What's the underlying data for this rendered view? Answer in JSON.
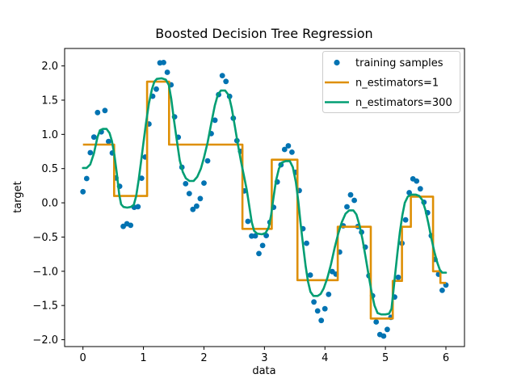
{
  "title": "Boosted Decision Tree Regression",
  "axes": {
    "xlabel": "data",
    "ylabel": "target",
    "xlim": [
      -0.303,
      6.307
    ],
    "ylim": [
      -2.1,
      2.255
    ],
    "xtick_values": [
      0,
      1,
      2,
      3,
      4,
      5,
      6
    ],
    "xtick_labels": [
      "0",
      "1",
      "2",
      "3",
      "4",
      "5",
      "6"
    ],
    "ytick_values": [
      2.0,
      1.5,
      1.0,
      0.5,
      0.0,
      -0.5,
      -1.0,
      -1.5,
      -2.0
    ],
    "ytick_labels": [
      "2.0",
      "1.5",
      "1.0",
      "0.5",
      "0.0",
      "−0.5",
      "−1.0",
      "−1.5",
      "−2.0"
    ]
  },
  "legend": {
    "entries": [
      {
        "label": "training samples",
        "type": "marker",
        "color": "#0173b2"
      },
      {
        "label": "n_estimators=1",
        "type": "line",
        "color": "#de8f05"
      },
      {
        "label": "n_estimators=300",
        "type": "line",
        "color": "#029e73"
      }
    ]
  },
  "colors": {
    "scatter": "#0173b2",
    "estimator1": "#de8f05",
    "estimator300": "#029e73",
    "spine": "#000000",
    "legend_border": "#cccccc"
  },
  "chart_data": {
    "type": "scatter",
    "title": "Boosted Decision Tree Regression",
    "xlabel": "data",
    "ylabel": "target",
    "xlim": [
      -0.303,
      6.307
    ],
    "ylim": [
      -2.1,
      2.255
    ],
    "grid": false,
    "legend_position": "upper right",
    "series": [
      {
        "name": "training samples",
        "type": "scatter",
        "color": "#0173b2",
        "x": [
          0.0,
          0.061,
          0.121,
          0.182,
          0.242,
          0.303,
          0.364,
          0.424,
          0.485,
          0.545,
          0.606,
          0.667,
          0.727,
          0.788,
          0.848,
          0.909,
          0.97,
          1.03,
          1.091,
          1.152,
          1.212,
          1.273,
          1.333,
          1.394,
          1.455,
          1.515,
          1.576,
          1.636,
          1.697,
          1.758,
          1.818,
          1.879,
          1.939,
          2.0,
          2.061,
          2.121,
          2.182,
          2.242,
          2.303,
          2.364,
          2.424,
          2.485,
          2.545,
          2.606,
          2.667,
          2.727,
          2.788,
          2.848,
          2.909,
          2.97,
          3.03,
          3.091,
          3.152,
          3.212,
          3.273,
          3.333,
          3.394,
          3.455,
          3.515,
          3.576,
          3.636,
          3.697,
          3.758,
          3.818,
          3.879,
          3.939,
          4.0,
          4.061,
          4.121,
          4.182,
          4.242,
          4.303,
          4.364,
          4.424,
          4.485,
          4.545,
          4.606,
          4.667,
          4.727,
          4.788,
          4.848,
          4.909,
          4.97,
          5.03,
          5.091,
          5.152,
          5.212,
          5.273,
          5.333,
          5.394,
          5.455,
          5.515,
          5.576,
          5.636,
          5.697,
          5.758,
          5.818,
          5.879,
          5.939,
          6.0
        ],
        "y": [
          0.162,
          0.355,
          0.732,
          0.96,
          1.319,
          1.037,
          1.349,
          0.896,
          0.728,
          0.363,
          0.242,
          -0.344,
          -0.306,
          -0.329,
          -0.065,
          -0.057,
          0.36,
          0.669,
          1.151,
          1.557,
          1.661,
          2.045,
          2.05,
          1.907,
          1.724,
          1.257,
          0.958,
          0.52,
          0.279,
          0.135,
          -0.096,
          -0.049,
          0.062,
          0.289,
          0.613,
          1.011,
          1.207,
          1.581,
          1.858,
          1.774,
          1.555,
          1.237,
          0.908,
          0.751,
          0.174,
          -0.271,
          -0.486,
          -0.483,
          -0.742,
          -0.624,
          -0.478,
          -0.284,
          -0.065,
          0.305,
          0.556,
          0.78,
          0.833,
          0.74,
          0.446,
          0.179,
          -0.378,
          -0.591,
          -1.055,
          -1.449,
          -1.58,
          -1.719,
          -1.548,
          -1.337,
          -1.005,
          -1.043,
          -0.719,
          -0.335,
          -0.058,
          0.117,
          0.036,
          -0.346,
          -0.429,
          -0.647,
          -1.065,
          -1.358,
          -1.74,
          -1.924,
          -1.947,
          -1.85,
          -1.673,
          -1.377,
          -1.088,
          -0.59,
          -0.249,
          0.148,
          0.35,
          0.318,
          0.205,
          0.008,
          -0.144,
          -0.481,
          -0.827,
          -1.044,
          -1.279,
          -1.201
        ]
      },
      {
        "name": "n_estimators=1",
        "type": "step",
        "color": "#de8f05",
        "steps": [
          [
            0.0,
            0.515,
            0.85
          ],
          [
            0.515,
            1.061,
            0.1
          ],
          [
            1.061,
            1.424,
            1.77
          ],
          [
            1.424,
            2.636,
            0.85
          ],
          [
            2.636,
            3.121,
            -0.38
          ],
          [
            3.121,
            3.545,
            0.63
          ],
          [
            3.545,
            4.212,
            -1.13
          ],
          [
            4.212,
            4.758,
            -0.35
          ],
          [
            4.758,
            5.121,
            -1.69
          ],
          [
            5.121,
            5.273,
            -1.14
          ],
          [
            5.273,
            5.42,
            -0.35
          ],
          [
            5.42,
            5.788,
            0.09
          ],
          [
            5.788,
            5.909,
            -1.0
          ],
          [
            5.909,
            6.0,
            -1.17
          ]
        ]
      },
      {
        "name": "n_estimators=300",
        "type": "line",
        "color": "#029e73",
        "points": [
          [
            0.0,
            0.51
          ],
          [
            0.06,
            0.51
          ],
          [
            0.12,
            0.56
          ],
          [
            0.18,
            0.72
          ],
          [
            0.24,
            0.96
          ],
          [
            0.28,
            1.06
          ],
          [
            0.33,
            1.08
          ],
          [
            0.39,
            1.08
          ],
          [
            0.44,
            1.02
          ],
          [
            0.48,
            0.9
          ],
          [
            0.52,
            0.7
          ],
          [
            0.56,
            0.43
          ],
          [
            0.6,
            0.12
          ],
          [
            0.63,
            -0.02
          ],
          [
            0.67,
            -0.06
          ],
          [
            0.73,
            -0.07
          ],
          [
            0.79,
            -0.06
          ],
          [
            0.84,
            -0.03
          ],
          [
            0.88,
            0.1
          ],
          [
            0.92,
            0.33
          ],
          [
            0.96,
            0.6
          ],
          [
            1.0,
            0.88
          ],
          [
            1.04,
            1.15
          ],
          [
            1.09,
            1.45
          ],
          [
            1.14,
            1.66
          ],
          [
            1.18,
            1.77
          ],
          [
            1.22,
            1.81
          ],
          [
            1.3,
            1.82
          ],
          [
            1.37,
            1.8
          ],
          [
            1.42,
            1.72
          ],
          [
            1.46,
            1.52
          ],
          [
            1.5,
            1.24
          ],
          [
            1.55,
            0.92
          ],
          [
            1.6,
            0.62
          ],
          [
            1.65,
            0.45
          ],
          [
            1.7,
            0.36
          ],
          [
            1.76,
            0.32
          ],
          [
            1.83,
            0.32
          ],
          [
            1.89,
            0.38
          ],
          [
            1.95,
            0.5
          ],
          [
            2.0,
            0.66
          ],
          [
            2.06,
            0.88
          ],
          [
            2.12,
            1.16
          ],
          [
            2.18,
            1.42
          ],
          [
            2.23,
            1.58
          ],
          [
            2.28,
            1.64
          ],
          [
            2.35,
            1.64
          ],
          [
            2.41,
            1.57
          ],
          [
            2.46,
            1.38
          ],
          [
            2.51,
            1.12
          ],
          [
            2.56,
            0.86
          ],
          [
            2.61,
            0.62
          ],
          [
            2.66,
            0.4
          ],
          [
            2.71,
            0.18
          ],
          [
            2.75,
            -0.05
          ],
          [
            2.79,
            -0.28
          ],
          [
            2.83,
            -0.41
          ],
          [
            2.88,
            -0.45
          ],
          [
            2.96,
            -0.46
          ],
          [
            3.02,
            -0.44
          ],
          [
            3.07,
            -0.36
          ],
          [
            3.11,
            -0.18
          ],
          [
            3.15,
            0.08
          ],
          [
            3.19,
            0.32
          ],
          [
            3.24,
            0.5
          ],
          [
            3.29,
            0.59
          ],
          [
            3.35,
            0.61
          ],
          [
            3.42,
            0.61
          ],
          [
            3.47,
            0.52
          ],
          [
            3.52,
            0.3
          ],
          [
            3.56,
            0.02
          ],
          [
            3.6,
            -0.32
          ],
          [
            3.64,
            -0.63
          ],
          [
            3.68,
            -0.92
          ],
          [
            3.72,
            -1.15
          ],
          [
            3.76,
            -1.3
          ],
          [
            3.81,
            -1.36
          ],
          [
            3.88,
            -1.36
          ],
          [
            3.93,
            -1.33
          ],
          [
            3.98,
            -1.25
          ],
          [
            4.04,
            -1.1
          ],
          [
            4.1,
            -0.9
          ],
          [
            4.16,
            -0.66
          ],
          [
            4.22,
            -0.45
          ],
          [
            4.28,
            -0.28
          ],
          [
            4.34,
            -0.16
          ],
          [
            4.4,
            -0.11
          ],
          [
            4.47,
            -0.11
          ],
          [
            4.52,
            -0.17
          ],
          [
            4.57,
            -0.32
          ],
          [
            4.62,
            -0.53
          ],
          [
            4.67,
            -0.78
          ],
          [
            4.72,
            -1.05
          ],
          [
            4.77,
            -1.3
          ],
          [
            4.82,
            -1.5
          ],
          [
            4.87,
            -1.61
          ],
          [
            4.93,
            -1.63
          ],
          [
            5.0,
            -1.63
          ],
          [
            5.06,
            -1.62
          ],
          [
            5.1,
            -1.55
          ],
          [
            5.13,
            -1.3
          ],
          [
            5.16,
            -1.05
          ],
          [
            5.2,
            -0.72
          ],
          [
            5.24,
            -0.42
          ],
          [
            5.28,
            -0.18
          ],
          [
            5.32,
            0.0
          ],
          [
            5.37,
            0.09
          ],
          [
            5.43,
            0.12
          ],
          [
            5.5,
            0.12
          ],
          [
            5.56,
            0.1
          ],
          [
            5.61,
            0.04
          ],
          [
            5.66,
            -0.1
          ],
          [
            5.71,
            -0.3
          ],
          [
            5.76,
            -0.52
          ],
          [
            5.81,
            -0.72
          ],
          [
            5.86,
            -0.88
          ],
          [
            5.9,
            -0.98
          ],
          [
            5.94,
            -1.02
          ],
          [
            6.0,
            -1.02
          ]
        ]
      }
    ]
  }
}
